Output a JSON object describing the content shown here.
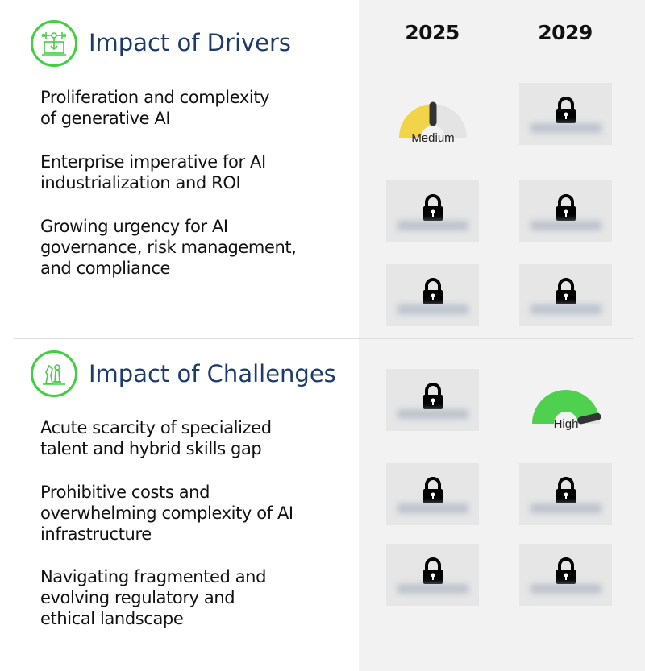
{
  "columns": [
    "2025",
    "2029"
  ],
  "drivers": {
    "title": "Impact of Drivers",
    "icon": "ai-laptop-icon",
    "rows": [
      {
        "label_lines": [
          "Proliferation and complexity",
          "of generative AI"
        ],
        "cells": [
          {
            "type": "gauge",
            "label": "Medium",
            "level": 0.5,
            "color": "#f2d44a"
          },
          {
            "type": "locked"
          }
        ]
      },
      {
        "label_lines": [
          "Enterprise imperative for AI",
          "industrialization and ROI"
        ],
        "cells": [
          {
            "type": "locked"
          },
          {
            "type": "locked"
          }
        ]
      },
      {
        "label_lines": [
          "Growing urgency for AI",
          "governance, risk management,",
          "and compliance"
        ],
        "cells": [
          {
            "type": "locked"
          },
          {
            "type": "locked"
          }
        ]
      }
    ]
  },
  "challenges": {
    "title": "Impact of Challenges",
    "icon": "chess-pieces-icon",
    "rows": [
      {
        "label_lines": [
          "Acute scarcity of specialized",
          "talent and hybrid skills gap"
        ],
        "cells": [
          {
            "type": "locked"
          },
          {
            "type": "gauge",
            "label": "High",
            "level": 0.93,
            "color": "#4fd14f"
          }
        ]
      },
      {
        "label_lines": [
          "Prohibitive costs and",
          "overwhelming complexity of AI",
          "infrastructure"
        ],
        "cells": [
          {
            "type": "locked"
          },
          {
            "type": "locked"
          }
        ]
      },
      {
        "label_lines": [
          "Navigating fragmented and",
          "evolving regulatory and",
          "ethical landscape"
        ],
        "cells": [
          {
            "type": "locked"
          },
          {
            "type": "locked"
          }
        ]
      }
    ]
  },
  "colors": {
    "accent_green": "#3fcf3f",
    "title_blue": "#1e3a6b",
    "gauge_track": "#e4e4e4",
    "needle": "#333333"
  }
}
